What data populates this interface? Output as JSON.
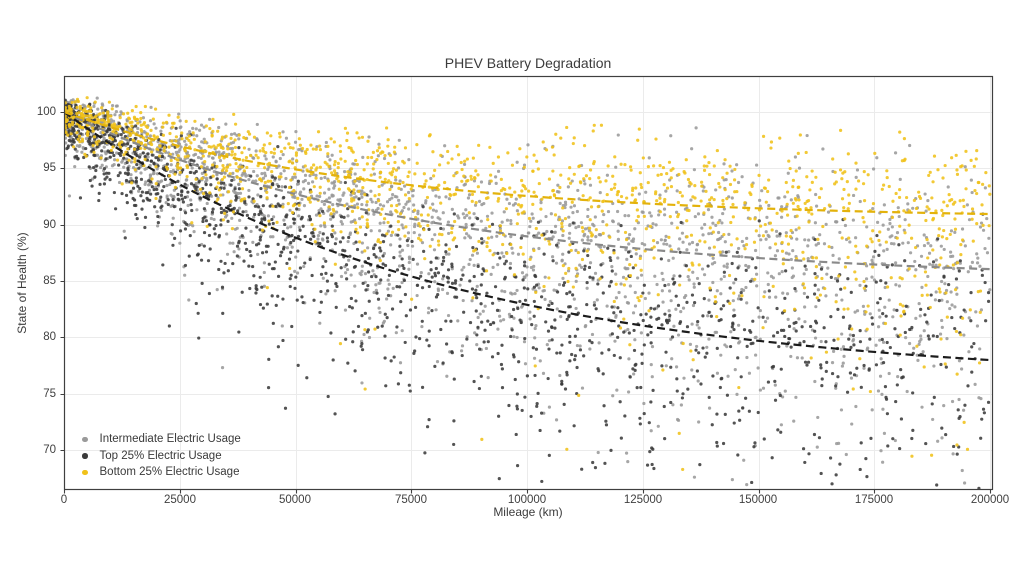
{
  "figure": {
    "background": "#ffffff",
    "text_color": "#3f3f3f",
    "frame_color": "#3f3f3f",
    "grid_color": "#ebebeb"
  },
  "chart_data": {
    "type": "scatter",
    "title": "PHEV Battery Degradation",
    "xlabel": "Mileage (km)",
    "ylabel": "State of Health (%)",
    "xlim": [
      0,
      200000
    ],
    "ylim": [
      66.5,
      103.2
    ],
    "grid": true,
    "legend_position": "lower left",
    "x_ticks": [
      0,
      25000,
      50000,
      75000,
      100000,
      125000,
      150000,
      175000,
      200000
    ],
    "x_tick_labels": [
      "0",
      "25000",
      "50000",
      "75000",
      "100000",
      "125000",
      "150000",
      "175000",
      "200000"
    ],
    "y_ticks": [
      100,
      95,
      90,
      85,
      80,
      75,
      70
    ],
    "y_tick_labels": [
      "100",
      "95",
      "90",
      "85",
      "80",
      "75",
      "70"
    ],
    "marker": {
      "radius_px": 1.6,
      "alpha": 0.88
    },
    "trend_line_style": {
      "dash": [
        8,
        4.5
      ],
      "width": 2.2
    },
    "sample_mileages": [
      0,
      25000,
      50000,
      75000,
      100000,
      125000,
      150000,
      175000,
      200000
    ],
    "series": [
      {
        "name": "Intermediate Electric Usage",
        "color": "#9a9a9a",
        "trend_color": "#8a8a8a",
        "n_points": 2100,
        "trend": {
          "model": "exponential",
          "formula": "soh = a + b*exp(-mileage/tau)",
          "a": 85,
          "b": 15,
          "tau": 75000
        },
        "trend_soh_at_sample_mileages": [
          100,
          95.7,
          92.7,
          90.5,
          89.0,
          87.8,
          87.0,
          86.5,
          86.0
        ],
        "scatter": {
          "seed": 101,
          "mileage_exponent": 1.35,
          "sigma_up": 4.2,
          "sigma_down": 7.5,
          "outlier_prob": 0.05,
          "outlier_max_drop": 26
        }
      },
      {
        "name": "Top 25% Electric Usage",
        "color": "#3b3b3b",
        "trend_color": "#1c1c1c",
        "n_points": 1500,
        "trend": {
          "model": "exponential",
          "formula": "soh = a + b*exp(-mileage/tau)",
          "a": 76,
          "b": 24,
          "tau": 80000
        },
        "trend_soh_at_sample_mileages": [
          100,
          93.6,
          88.8,
          85.4,
          82.9,
          81.0,
          79.7,
          78.7,
          78.0
        ],
        "scatter": {
          "seed": 202,
          "mileage_exponent": 1.5,
          "sigma_up": 4.5,
          "sigma_down": 8.5,
          "outlier_prob": 0.07,
          "outlier_max_drop": 28
        }
      },
      {
        "name": "Bottom 25% Electric Usage",
        "color": "#f0c11a",
        "trend_color": "#e3b20b",
        "n_points": 1400,
        "trend": {
          "model": "exponential",
          "formula": "soh = a + b*exp(-mileage/tau)",
          "a": 90.5,
          "b": 9.5,
          "tau": 65000
        },
        "trend_soh_at_sample_mileages": [
          100,
          97.0,
          94.9,
          93.5,
          92.5,
          91.9,
          91.4,
          91.1,
          90.9
        ],
        "scatter": {
          "seed": 303,
          "mileage_exponent": 1.25,
          "sigma_up": 3.2,
          "sigma_down": 5.5,
          "outlier_prob": 0.035,
          "outlier_max_drop": 24
        }
      }
    ]
  }
}
